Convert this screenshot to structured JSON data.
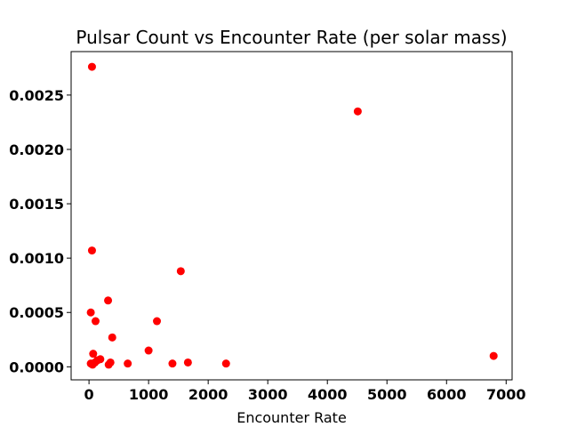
{
  "chart_data": {
    "type": "scatter",
    "title": "Pulsar Count vs Encounter Rate (per solar mass)",
    "xlabel": "Encounter Rate",
    "ylabel": "",
    "xlim": [
      -300,
      7100
    ],
    "ylim": [
      -0.00012,
      0.0029
    ],
    "x_ticks": [
      0,
      1000,
      2000,
      3000,
      4000,
      5000,
      6000,
      7000
    ],
    "x_tick_labels": [
      "0",
      "1000",
      "2000",
      "3000",
      "4000",
      "5000",
      "6000",
      "7000"
    ],
    "y_ticks": [
      0.0,
      0.0005,
      0.001,
      0.0015,
      0.002,
      0.0025
    ],
    "y_tick_labels": [
      "0.0000",
      "0.0005",
      "0.0010",
      "0.0015",
      "0.0020",
      "0.0025"
    ],
    "grid": false,
    "marker_color": "#ff0000",
    "points": [
      {
        "x": 50,
        "y": 0.00276
      },
      {
        "x": 4510,
        "y": 0.00235
      },
      {
        "x": 50,
        "y": 0.00107
      },
      {
        "x": 1540,
        "y": 0.00088
      },
      {
        "x": 320,
        "y": 0.00061
      },
      {
        "x": 30,
        "y": 0.0005
      },
      {
        "x": 110,
        "y": 0.00042
      },
      {
        "x": 1140,
        "y": 0.00042
      },
      {
        "x": 390,
        "y": 0.00027
      },
      {
        "x": 1000,
        "y": 0.00015
      },
      {
        "x": 70,
        "y": 0.00012
      },
      {
        "x": 6790,
        "y": 0.0001
      },
      {
        "x": 190,
        "y": 7e-05
      },
      {
        "x": 140,
        "y": 6e-05
      },
      {
        "x": 360,
        "y": 4e-05
      },
      {
        "x": 30,
        "y": 3e-05
      },
      {
        "x": 100,
        "y": 4e-05
      },
      {
        "x": 1660,
        "y": 4e-05
      },
      {
        "x": 650,
        "y": 3e-05
      },
      {
        "x": 1400,
        "y": 3e-05
      },
      {
        "x": 2300,
        "y": 3e-05
      },
      {
        "x": 330,
        "y": 2e-05
      },
      {
        "x": 60,
        "y": 2e-05
      }
    ]
  }
}
